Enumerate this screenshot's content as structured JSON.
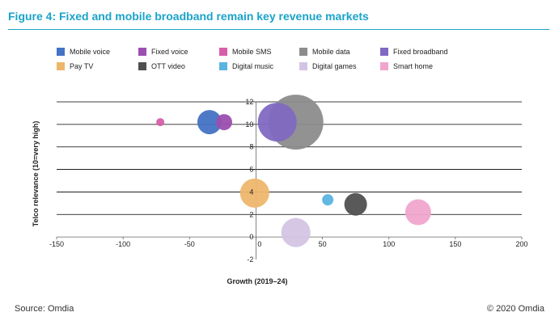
{
  "figure": {
    "title": "Figure 4: Fixed and mobile broadband remain key revenue markets"
  },
  "footer": {
    "source": "Source: Omdia",
    "copyright": "© 2020 Omdia"
  },
  "colors": {
    "title": "#1aa3c9",
    "gridline": "#000000",
    "axis": "#666666"
  },
  "chart_data": {
    "type": "bubble",
    "xlabel": "Growth (2019–24)",
    "ylabel": "Telco relevance (10=very high)",
    "xlim": [
      -150,
      200
    ],
    "ylim": [
      -2,
      12
    ],
    "x_ticks": [
      -150,
      -100,
      -50,
      0,
      50,
      100,
      150,
      200
    ],
    "y_ticks": [
      -2,
      0,
      2,
      4,
      6,
      8,
      10,
      12
    ],
    "grid": "horizontal",
    "legend_position": "top",
    "series": [
      {
        "name": "Mobile voice",
        "color": "#4472c4",
        "x": -35,
        "y": 10.2,
        "size": 15
      },
      {
        "name": "Fixed voice",
        "color": "#9b4fb0",
        "x": -24,
        "y": 10.2,
        "size": 10
      },
      {
        "name": "Mobile SMS",
        "color": "#d65fa8",
        "x": -72,
        "y": 10.2,
        "size": 5
      },
      {
        "name": "Mobile data",
        "color": "#8c8c8c",
        "x": 30,
        "y": 10.2,
        "size": 34
      },
      {
        "name": "Fixed broadband",
        "color": "#7f69c2",
        "x": 16,
        "y": 10.2,
        "size": 24
      },
      {
        "name": "Pay TV",
        "color": "#eeb66b",
        "x": -1,
        "y": 3.9,
        "size": 18
      },
      {
        "name": "OTT video",
        "color": "#505050",
        "x": 75,
        "y": 2.9,
        "size": 14
      },
      {
        "name": "Digital music",
        "color": "#5ab4e0",
        "x": 54,
        "y": 3.3,
        "size": 7
      },
      {
        "name": "Digital games",
        "color": "#d4c4e4",
        "x": 30,
        "y": 0.4,
        "size": 18
      },
      {
        "name": "Smart home",
        "color": "#f0a5ce",
        "x": 122,
        "y": 2.2,
        "size": 16
      }
    ]
  }
}
